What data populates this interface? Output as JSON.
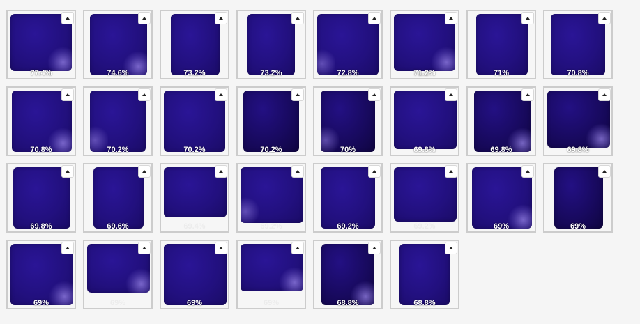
{
  "toggle_icon": "caret-up-icon",
  "swatch_color": "#22107f",
  "tiles": [
    {
      "percent": "77.4%"
    },
    {
      "percent": "74.6%"
    },
    {
      "percent": "73.2%"
    },
    {
      "percent": "73.2%"
    },
    {
      "percent": "72.8%"
    },
    {
      "percent": "71.2%"
    },
    {
      "percent": "71%"
    },
    {
      "percent": "70.8%"
    },
    {
      "percent": "70.8%"
    },
    {
      "percent": "70.2%"
    },
    {
      "percent": "70.2%"
    },
    {
      "percent": "70.2%"
    },
    {
      "percent": "70%"
    },
    {
      "percent": "69.8%"
    },
    {
      "percent": "69.8%"
    },
    {
      "percent": "69.8%"
    },
    {
      "percent": "69.8%"
    },
    {
      "percent": "69.6%"
    },
    {
      "percent": "69.4%"
    },
    {
      "percent": "69.2%"
    },
    {
      "percent": "69.2%"
    },
    {
      "percent": "69.2%"
    },
    {
      "percent": "69%"
    },
    {
      "percent": "69%"
    },
    {
      "percent": "69%"
    },
    {
      "percent": "69%"
    },
    {
      "percent": "69%"
    },
    {
      "percent": "69%"
    },
    {
      "percent": "68.8%"
    },
    {
      "percent": "68.8%"
    }
  ]
}
